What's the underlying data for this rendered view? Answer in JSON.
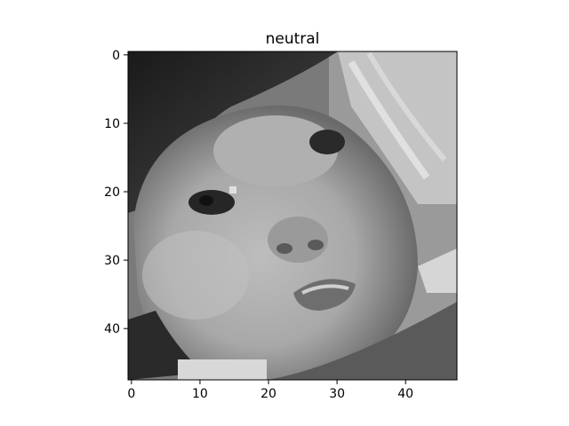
{
  "figure": {
    "title": "neutral",
    "image_description": "48x48 grayscale photo crop",
    "colormap": "gray",
    "x_ticks": [
      "0",
      "10",
      "20",
      "30",
      "40"
    ],
    "y_ticks": [
      "0",
      "10",
      "20",
      "30",
      "40"
    ],
    "x_tick_values": [
      0,
      10,
      20,
      30,
      40
    ],
    "y_tick_values": [
      0,
      10,
      20,
      30,
      40
    ],
    "xlim": [
      -0.5,
      47.5
    ],
    "ylim": [
      47.5,
      -0.5
    ],
    "frame_color": "#000000"
  }
}
